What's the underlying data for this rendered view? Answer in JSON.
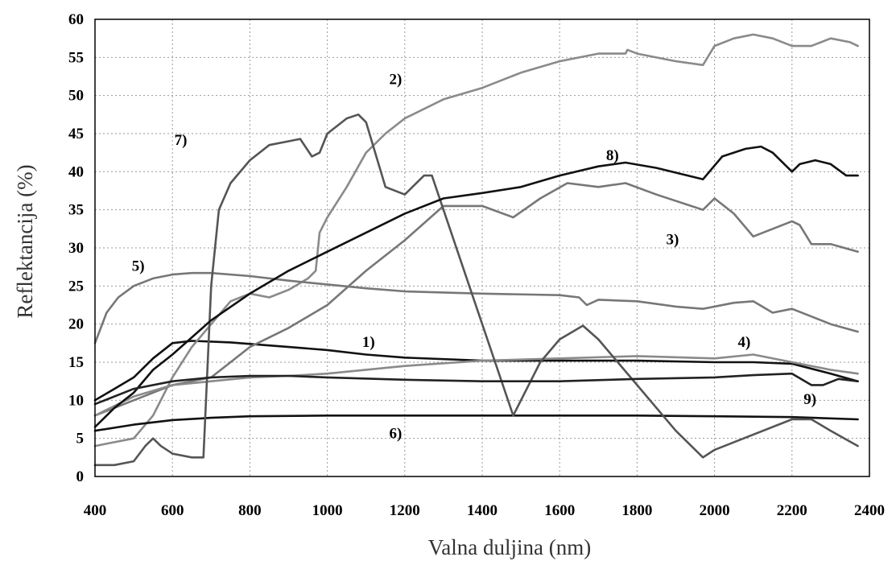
{
  "chart_data": {
    "type": "line",
    "xlabel": "Valna duljina (nm)",
    "ylabel": "Reflektancija (%)",
    "xlim": [
      400,
      2400
    ],
    "ylim": [
      0,
      60
    ],
    "x_ticks": [
      400,
      600,
      800,
      1000,
      1200,
      1400,
      1600,
      1800,
      2000,
      2200,
      2400
    ],
    "y_ticks": [
      0,
      5,
      10,
      15,
      20,
      25,
      30,
      35,
      40,
      45,
      50,
      55,
      60
    ],
    "grid": true,
    "legend": "none (series labelled inline)",
    "series": [
      {
        "name": "1)",
        "color": "#111111",
        "label_at": [
          1090,
          17
        ],
        "x": [
          400,
          450,
          500,
          550,
          600,
          650,
          700,
          750,
          800,
          900,
          1000,
          1100,
          1200,
          1400,
          1600,
          1800,
          2000,
          2100,
          2200,
          2300,
          2370
        ],
        "y": [
          10,
          11.5,
          13,
          15.5,
          17.5,
          17.8,
          17.7,
          17.6,
          17.4,
          17,
          16.6,
          16,
          15.6,
          15.2,
          15.2,
          15.2,
          15,
          15,
          14.8,
          13.5,
          12.5
        ]
      },
      {
        "name": "2)",
        "color": "#8a8a8a",
        "label_at": [
          1160,
          51.5
        ],
        "x": [
          400,
          450,
          500,
          550,
          600,
          650,
          700,
          750,
          800,
          850,
          900,
          950,
          970,
          980,
          1000,
          1050,
          1100,
          1150,
          1200,
          1300,
          1400,
          1500,
          1600,
          1700,
          1770,
          1775,
          1800,
          1900,
          1970,
          2000,
          2050,
          2100,
          2150,
          2200,
          2250,
          2300,
          2350,
          2370
        ],
        "y": [
          4,
          4.5,
          5,
          8,
          13,
          17,
          20,
          23,
          24,
          23.5,
          24.5,
          26,
          27,
          32,
          34,
          38,
          42.5,
          45,
          47,
          49.5,
          51,
          53,
          54.5,
          55.5,
          55.5,
          56,
          55.5,
          54.5,
          54,
          56.5,
          57.5,
          58,
          57.5,
          56.5,
          56.5,
          57.5,
          57,
          56.5
        ]
      },
      {
        "name": "3)",
        "color": "#777777",
        "label_at": [
          1875,
          30.5
        ],
        "x": [
          400,
          500,
          600,
          700,
          750,
          800,
          900,
          1000,
          1100,
          1200,
          1300,
          1400,
          1480,
          1550,
          1620,
          1700,
          1770,
          1850,
          1970,
          2000,
          2050,
          2100,
          2200,
          2220,
          2250,
          2300,
          2370
        ],
        "y": [
          8,
          10,
          12,
          13,
          15,
          17,
          19.5,
          22.5,
          27,
          31,
          35.5,
          35.5,
          34,
          36.5,
          38.5,
          38,
          38.5,
          37,
          35,
          36.5,
          34.5,
          31.5,
          33.5,
          33,
          30.5,
          30.5,
          29.5
        ]
      },
      {
        "name": "4)",
        "color": "#8a8a8a",
        "label_at": [
          2060,
          17
        ],
        "x": [
          400,
          500,
          600,
          700,
          800,
          900,
          1000,
          1200,
          1400,
          1600,
          1800,
          2000,
          2100,
          2200,
          2300,
          2370
        ],
        "y": [
          8,
          10.5,
          12,
          12.5,
          13,
          13.2,
          13.5,
          14.5,
          15.2,
          15.5,
          15.8,
          15.5,
          16,
          15,
          14,
          13.5
        ]
      },
      {
        "name": "5)",
        "color": "#777777",
        "label_at": [
          495,
          27
        ],
        "x": [
          400,
          430,
          460,
          500,
          550,
          600,
          650,
          700,
          800,
          900,
          1000,
          1100,
          1200,
          1400,
          1600,
          1650,
          1670,
          1700,
          1800,
          1900,
          1970,
          2050,
          2100,
          2150,
          2200,
          2250,
          2300,
          2370
        ],
        "y": [
          17.5,
          21.5,
          23.5,
          25,
          26,
          26.5,
          26.7,
          26.7,
          26.3,
          25.7,
          25.2,
          24.7,
          24.3,
          24,
          23.8,
          23.5,
          22.5,
          23.2,
          23,
          22.3,
          22,
          22.8,
          23,
          21.5,
          22,
          21,
          20,
          19
        ]
      },
      {
        "name": "6)",
        "color": "#111111",
        "label_at": [
          1160,
          5
        ],
        "x": [
          400,
          500,
          600,
          700,
          800,
          1000,
          1200,
          1400,
          1600,
          1800,
          2000,
          2200,
          2370
        ],
        "y": [
          6,
          6.8,
          7.4,
          7.7,
          7.9,
          8,
          8,
          8,
          8,
          8,
          7.9,
          7.8,
          7.5
        ]
      },
      {
        "name": "7)",
        "color": "#555555",
        "label_at": [
          605,
          43.5
        ],
        "x": [
          400,
          450,
          500,
          530,
          550,
          570,
          600,
          650,
          680,
          700,
          720,
          750,
          800,
          850,
          900,
          930,
          960,
          980,
          1000,
          1050,
          1080,
          1100,
          1150,
          1200,
          1250,
          1270,
          1300,
          1400,
          1480,
          1550,
          1600,
          1660,
          1700,
          1800,
          1900,
          1970,
          2000,
          2100,
          2200,
          2250,
          2300,
          2370
        ],
        "y": [
          1.5,
          1.5,
          2,
          4,
          5,
          4,
          3,
          2.5,
          2.5,
          25,
          35,
          38.5,
          41.5,
          43.5,
          44,
          44.3,
          42,
          42.5,
          45,
          47,
          47.5,
          46.5,
          38,
          37,
          39.5,
          39.5,
          35,
          20,
          8,
          15,
          18,
          19.8,
          18,
          12,
          6,
          2.5,
          3.5,
          5.5,
          7.5,
          7.5,
          6,
          4
        ]
      },
      {
        "name": "8)",
        "color": "#111111",
        "label_at": [
          1720,
          41.5
        ],
        "x": [
          400,
          450,
          500,
          550,
          600,
          700,
          800,
          900,
          1000,
          1100,
          1200,
          1300,
          1400,
          1500,
          1600,
          1700,
          1770,
          1850,
          1970,
          2020,
          2080,
          2120,
          2150,
          2200,
          2220,
          2260,
          2300,
          2340,
          2370
        ],
        "y": [
          6.5,
          9,
          11,
          14,
          16,
          20.5,
          24,
          27,
          29.5,
          32,
          34.5,
          36.5,
          37.2,
          38,
          39.5,
          40.7,
          41.2,
          40.5,
          39,
          42,
          43,
          43.3,
          42.5,
          40,
          41,
          41.5,
          41,
          39.5,
          39.5
        ]
      },
      {
        "name": "9)",
        "color": "#222222",
        "label_at": [
          2230,
          9.5
        ],
        "x": [
          400,
          500,
          600,
          700,
          800,
          900,
          1000,
          1200,
          1400,
          1600,
          1800,
          2000,
          2100,
          2200,
          2250,
          2280,
          2320,
          2370
        ],
        "y": [
          9.5,
          11.5,
          12.5,
          13,
          13.2,
          13.2,
          13,
          12.7,
          12.5,
          12.5,
          12.8,
          13,
          13.3,
          13.5,
          12,
          12,
          12.8,
          12.5
        ]
      }
    ]
  }
}
